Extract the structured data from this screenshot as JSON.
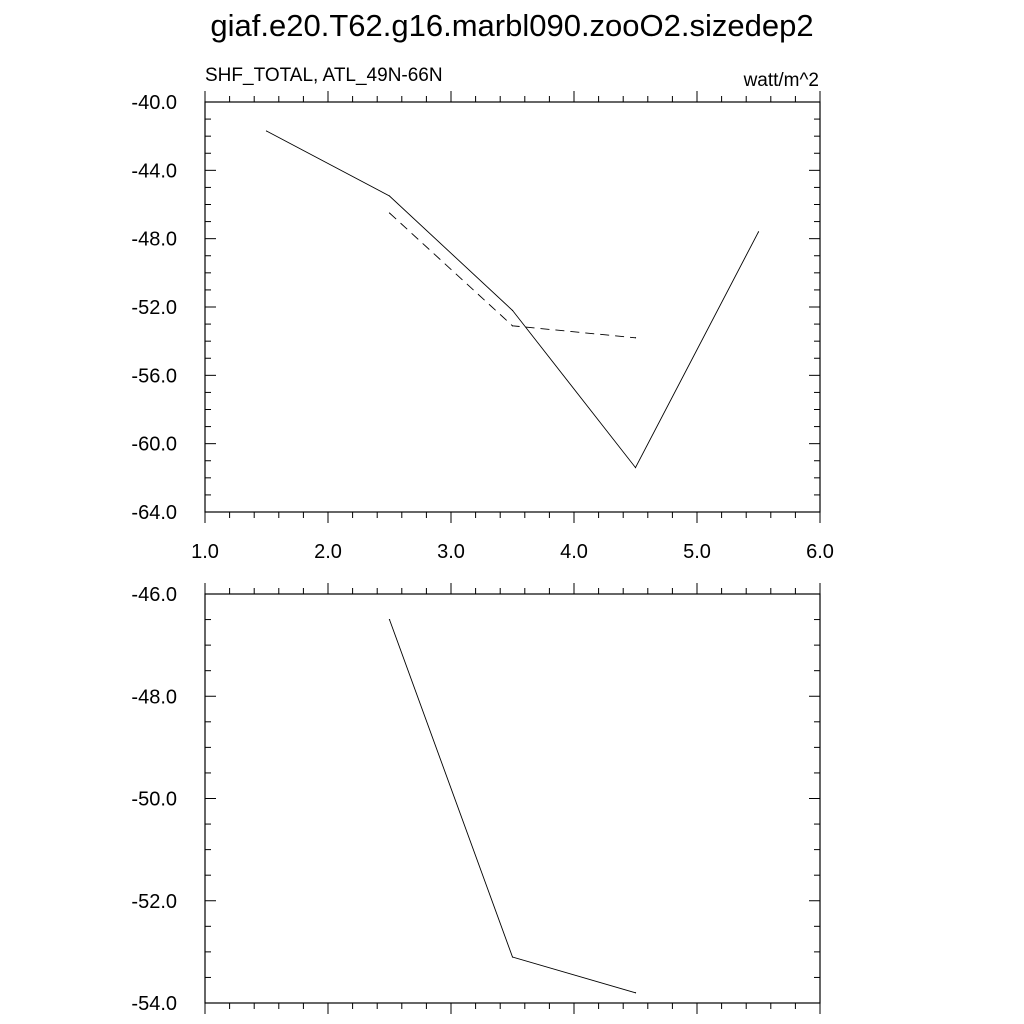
{
  "title": "giaf.e20.T62.g16.marbl090.zooO2.sizedep2",
  "subtitle_left": "SHF_TOTAL, ATL_49N-66N",
  "subtitle_right": "watt/m^2",
  "chart_data": [
    {
      "type": "line",
      "x_ticks": [
        "1.0",
        "2.0",
        "3.0",
        "4.0",
        "5.0",
        "6.0"
      ],
      "y_ticks": [
        "-40.0",
        "-44.0",
        "-48.0",
        "-52.0",
        "-56.0",
        "-60.0",
        "-64.0"
      ],
      "xlim": [
        1.0,
        6.0
      ],
      "ylim": [
        -64.0,
        -40.0
      ],
      "series": [
        {
          "style": "solid",
          "x": [
            1.5,
            2.5,
            3.5,
            4.5,
            5.5
          ],
          "y": [
            -41.7,
            -45.5,
            -52.2,
            -61.4,
            -47.6
          ]
        },
        {
          "style": "dashed",
          "x": [
            2.5,
            3.5,
            4.5
          ],
          "y": [
            -46.5,
            -53.1,
            -53.8
          ]
        }
      ]
    },
    {
      "type": "line",
      "y_ticks": [
        "-46.0",
        "-48.0",
        "-50.0",
        "-52.0",
        "-54.0"
      ],
      "xlim": [
        1.0,
        6.0
      ],
      "ylim": [
        -54.0,
        -46.0
      ],
      "series": [
        {
          "style": "solid",
          "x": [
            2.5,
            3.5,
            4.5
          ],
          "y": [
            -46.5,
            -53.1,
            -53.8
          ]
        }
      ]
    }
  ]
}
